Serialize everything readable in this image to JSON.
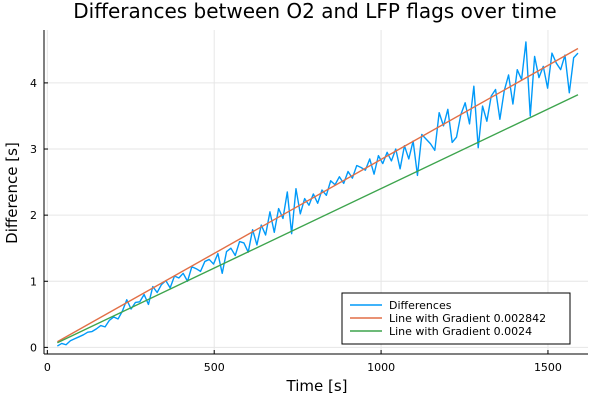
{
  "chart_data": {
    "type": "line",
    "title": "Differances between O2 and LFP flags over time",
    "xlabel": "Time [s]",
    "ylabel": "Difference [s]",
    "xlim": [
      -10,
      1620
    ],
    "ylim": [
      -0.1,
      4.8
    ],
    "xticks": [
      0,
      500,
      1000,
      1500
    ],
    "yticks": [
      0,
      1,
      2,
      3,
      4
    ],
    "grid": true,
    "legend_position": "bottom-right",
    "series": [
      {
        "name": "Differences",
        "color": "#009AF9",
        "x": [
          30,
          43,
          56,
          69,
          82,
          95,
          108,
          121,
          134,
          147,
          160,
          173,
          186,
          199,
          212,
          225,
          238,
          251,
          264,
          277,
          290,
          303,
          316,
          329,
          342,
          355,
          368,
          381,
          394,
          407,
          420,
          433,
          446,
          459,
          472,
          485,
          498,
          511,
          524,
          537,
          550,
          563,
          576,
          589,
          602,
          615,
          628,
          641,
          654,
          667,
          680,
          693,
          706,
          719,
          732,
          745,
          758,
          771,
          784,
          797,
          810,
          823,
          836,
          849,
          862,
          875,
          888,
          901,
          914,
          927,
          940,
          953,
          966,
          979,
          992,
          1005,
          1018,
          1031,
          1044,
          1057,
          1070,
          1083,
          1096,
          1109,
          1122,
          1135,
          1148,
          1161,
          1174,
          1187,
          1200,
          1213,
          1226,
          1239,
          1252,
          1265,
          1278,
          1291,
          1304,
          1317,
          1330,
          1343,
          1356,
          1369,
          1382,
          1395,
          1408,
          1421,
          1434,
          1447,
          1460,
          1473,
          1486,
          1499,
          1512,
          1525,
          1538,
          1551,
          1564,
          1577,
          1590
        ],
        "values": [
          0.02,
          0.06,
          0.04,
          0.1,
          0.13,
          0.16,
          0.19,
          0.23,
          0.24,
          0.28,
          0.33,
          0.31,
          0.41,
          0.46,
          0.43,
          0.55,
          0.72,
          0.58,
          0.68,
          0.69,
          0.8,
          0.65,
          0.92,
          0.83,
          0.95,
          1.01,
          0.9,
          1.08,
          1.05,
          1.12,
          1.0,
          1.22,
          1.19,
          1.15,
          1.3,
          1.33,
          1.26,
          1.42,
          1.12,
          1.45,
          1.5,
          1.39,
          1.6,
          1.58,
          1.44,
          1.78,
          1.55,
          1.85,
          1.7,
          2.05,
          1.74,
          2.1,
          1.95,
          2.35,
          1.72,
          2.4,
          2.02,
          2.25,
          2.15,
          2.32,
          2.18,
          2.38,
          2.3,
          2.52,
          2.46,
          2.58,
          2.48,
          2.66,
          2.56,
          2.75,
          2.72,
          2.68,
          2.85,
          2.62,
          2.9,
          2.78,
          2.95,
          2.82,
          3.0,
          2.7,
          3.05,
          2.85,
          3.12,
          2.6,
          3.22,
          3.15,
          3.08,
          2.98,
          3.55,
          3.35,
          3.6,
          3.1,
          3.18,
          3.52,
          3.7,
          3.38,
          3.95,
          3.02,
          3.65,
          3.42,
          3.8,
          3.9,
          3.45,
          3.88,
          4.12,
          3.68,
          4.2,
          4.05,
          4.62,
          3.5,
          4.4,
          4.08,
          4.25,
          3.92,
          4.45,
          4.3,
          4.2,
          4.42,
          3.85,
          4.38,
          4.45
        ]
      },
      {
        "name": "Line with Gradient 0.002842",
        "color": "#E26F46",
        "x": [
          30,
          1590
        ],
        "values": [
          0.085,
          4.52
        ]
      },
      {
        "name": "Line with Gradient 0.0024",
        "color": "#3DA44D",
        "x": [
          30,
          1590
        ],
        "values": [
          0.07,
          3.82
        ]
      }
    ]
  }
}
